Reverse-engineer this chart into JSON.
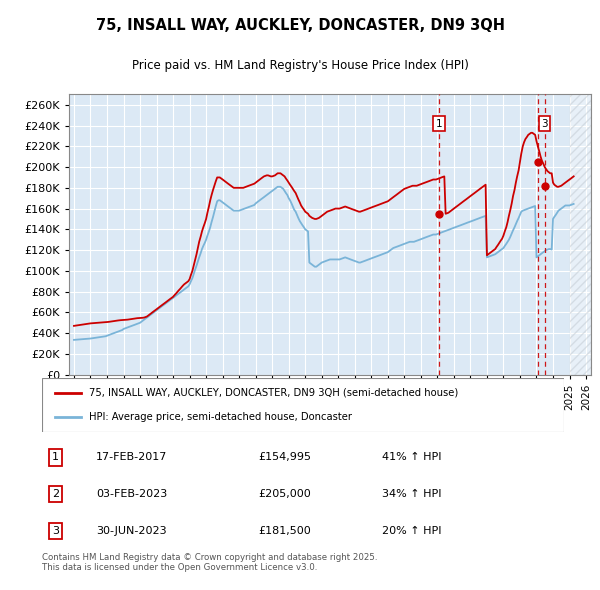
{
  "title": "75, INSALL WAY, AUCKLEY, DONCASTER, DN9 3QH",
  "subtitle": "Price paid vs. HM Land Registry's House Price Index (HPI)",
  "yticks": [
    0,
    20000,
    40000,
    60000,
    80000,
    100000,
    120000,
    140000,
    160000,
    180000,
    200000,
    220000,
    240000,
    260000
  ],
  "ylim": [
    0,
    270000
  ],
  "xlim_start": 1994.7,
  "xlim_end": 2026.3,
  "background_color": "#ffffff",
  "plot_bg_color": "#dce9f5",
  "grid_color": "#ffffff",
  "hatch_color": "#c0c8d0",
  "hpi_color": "#7ab4d8",
  "price_color": "#cc0000",
  "transactions": [
    {
      "label": "1",
      "date": 2017.12,
      "price": 154995,
      "on_chart": true
    },
    {
      "label": "2",
      "date": 2023.08,
      "price": 205000,
      "on_chart": false
    },
    {
      "label": "3",
      "date": 2023.49,
      "price": 181500,
      "on_chart": true
    }
  ],
  "transaction_dates_str": [
    "17-FEB-2017",
    "03-FEB-2023",
    "30-JUN-2023"
  ],
  "transaction_prices_str": [
    "£154,995",
    "£205,000",
    "£181,500"
  ],
  "transaction_pct": [
    "41% ↑ HPI",
    "34% ↑ HPI",
    "20% ↑ HPI"
  ],
  "legend_label_price": "75, INSALL WAY, AUCKLEY, DONCASTER, DN9 3QH (semi-detached house)",
  "legend_label_hpi": "HPI: Average price, semi-detached house, Doncaster",
  "footer": "Contains HM Land Registry data © Crown copyright and database right 2025.\nThis data is licensed under the Open Government Licence v3.0.",
  "hpi_x": [
    1995.0,
    1995.08,
    1995.17,
    1995.25,
    1995.33,
    1995.42,
    1995.5,
    1995.58,
    1995.67,
    1995.75,
    1995.83,
    1995.92,
    1996.0,
    1996.08,
    1996.17,
    1996.25,
    1996.33,
    1996.42,
    1996.5,
    1996.58,
    1996.67,
    1996.75,
    1996.83,
    1996.92,
    1997.0,
    1997.08,
    1997.17,
    1997.25,
    1997.33,
    1997.42,
    1997.5,
    1997.58,
    1997.67,
    1997.75,
    1997.83,
    1997.92,
    1998.0,
    1998.08,
    1998.17,
    1998.25,
    1998.33,
    1998.42,
    1998.5,
    1998.58,
    1998.67,
    1998.75,
    1998.83,
    1998.92,
    1999.0,
    1999.08,
    1999.17,
    1999.25,
    1999.33,
    1999.42,
    1999.5,
    1999.58,
    1999.67,
    1999.75,
    1999.83,
    1999.92,
    2000.0,
    2000.08,
    2000.17,
    2000.25,
    2000.33,
    2000.42,
    2000.5,
    2000.58,
    2000.67,
    2000.75,
    2000.83,
    2000.92,
    2001.0,
    2001.08,
    2001.17,
    2001.25,
    2001.33,
    2001.42,
    2001.5,
    2001.58,
    2001.67,
    2001.75,
    2001.83,
    2001.92,
    2002.0,
    2002.08,
    2002.17,
    2002.25,
    2002.33,
    2002.42,
    2002.5,
    2002.58,
    2002.67,
    2002.75,
    2002.83,
    2002.92,
    2003.0,
    2003.08,
    2003.17,
    2003.25,
    2003.33,
    2003.42,
    2003.5,
    2003.58,
    2003.67,
    2003.75,
    2003.83,
    2003.92,
    2004.0,
    2004.08,
    2004.17,
    2004.25,
    2004.33,
    2004.42,
    2004.5,
    2004.58,
    2004.67,
    2004.75,
    2004.83,
    2004.92,
    2005.0,
    2005.08,
    2005.17,
    2005.25,
    2005.33,
    2005.42,
    2005.5,
    2005.58,
    2005.67,
    2005.75,
    2005.83,
    2005.92,
    2006.0,
    2006.08,
    2006.17,
    2006.25,
    2006.33,
    2006.42,
    2006.5,
    2006.58,
    2006.67,
    2006.75,
    2006.83,
    2006.92,
    2007.0,
    2007.08,
    2007.17,
    2007.25,
    2007.33,
    2007.42,
    2007.5,
    2007.58,
    2007.67,
    2007.75,
    2007.83,
    2007.92,
    2008.0,
    2008.08,
    2008.17,
    2008.25,
    2008.33,
    2008.42,
    2008.5,
    2008.58,
    2008.67,
    2008.75,
    2008.83,
    2008.92,
    2009.0,
    2009.08,
    2009.17,
    2009.25,
    2009.33,
    2009.42,
    2009.5,
    2009.58,
    2009.67,
    2009.75,
    2009.83,
    2009.92,
    2010.0,
    2010.08,
    2010.17,
    2010.25,
    2010.33,
    2010.42,
    2010.5,
    2010.58,
    2010.67,
    2010.75,
    2010.83,
    2010.92,
    2011.0,
    2011.08,
    2011.17,
    2011.25,
    2011.33,
    2011.42,
    2011.5,
    2011.58,
    2011.67,
    2011.75,
    2011.83,
    2011.92,
    2012.0,
    2012.08,
    2012.17,
    2012.25,
    2012.33,
    2012.42,
    2012.5,
    2012.58,
    2012.67,
    2012.75,
    2012.83,
    2012.92,
    2013.0,
    2013.08,
    2013.17,
    2013.25,
    2013.33,
    2013.42,
    2013.5,
    2013.58,
    2013.67,
    2013.75,
    2013.83,
    2013.92,
    2014.0,
    2014.08,
    2014.17,
    2014.25,
    2014.33,
    2014.42,
    2014.5,
    2014.58,
    2014.67,
    2014.75,
    2014.83,
    2014.92,
    2015.0,
    2015.08,
    2015.17,
    2015.25,
    2015.33,
    2015.42,
    2015.5,
    2015.58,
    2015.67,
    2015.75,
    2015.83,
    2015.92,
    2016.0,
    2016.08,
    2016.17,
    2016.25,
    2016.33,
    2016.42,
    2016.5,
    2016.58,
    2016.67,
    2016.75,
    2016.83,
    2016.92,
    2017.0,
    2017.08,
    2017.17,
    2017.25,
    2017.33,
    2017.42,
    2017.5,
    2017.58,
    2017.67,
    2017.75,
    2017.83,
    2017.92,
    2018.0,
    2018.08,
    2018.17,
    2018.25,
    2018.33,
    2018.42,
    2018.5,
    2018.58,
    2018.67,
    2018.75,
    2018.83,
    2018.92,
    2019.0,
    2019.08,
    2019.17,
    2019.25,
    2019.33,
    2019.42,
    2019.5,
    2019.58,
    2019.67,
    2019.75,
    2019.83,
    2019.92,
    2020.0,
    2020.08,
    2020.17,
    2020.25,
    2020.33,
    2020.42,
    2020.5,
    2020.58,
    2020.67,
    2020.75,
    2020.83,
    2020.92,
    2021.0,
    2021.08,
    2021.17,
    2021.25,
    2021.33,
    2021.42,
    2021.5,
    2021.58,
    2021.67,
    2021.75,
    2021.83,
    2021.92,
    2022.0,
    2022.08,
    2022.17,
    2022.25,
    2022.33,
    2022.42,
    2022.5,
    2022.58,
    2022.67,
    2022.75,
    2022.83,
    2022.92,
    2023.0,
    2023.08,
    2023.17,
    2023.25,
    2023.33,
    2023.42,
    2023.5,
    2023.58,
    2023.67,
    2023.75,
    2023.83,
    2023.92,
    2024.0,
    2024.08,
    2024.17,
    2024.25,
    2024.33,
    2024.42,
    2024.5,
    2024.58,
    2024.67,
    2024.75,
    2024.83,
    2024.92,
    2025.0,
    2025.08,
    2025.17,
    2025.25
  ],
  "hpi_y": [
    33500,
    33600,
    33700,
    33800,
    33900,
    34000,
    34100,
    34200,
    34300,
    34400,
    34500,
    34600,
    34800,
    35000,
    35200,
    35400,
    35600,
    35800,
    36000,
    36200,
    36400,
    36600,
    36800,
    37000,
    37500,
    38000,
    38500,
    39000,
    39500,
    40000,
    40500,
    41000,
    41500,
    42000,
    42500,
    43000,
    44000,
    44500,
    45000,
    45500,
    46000,
    46500,
    47000,
    47500,
    48000,
    48500,
    49000,
    49500,
    50000,
    51000,
    52000,
    53000,
    54000,
    55000,
    56000,
    57000,
    58000,
    59000,
    60000,
    61000,
    62000,
    63000,
    64000,
    65000,
    66000,
    67000,
    68000,
    69000,
    70000,
    71000,
    72000,
    73000,
    74000,
    75000,
    76000,
    77000,
    78000,
    79000,
    80000,
    81000,
    82000,
    83000,
    84000,
    85000,
    87000,
    90000,
    93000,
    97000,
    101000,
    105000,
    109000,
    113000,
    117000,
    121000,
    124000,
    127000,
    130000,
    134000,
    138000,
    142000,
    147000,
    152000,
    157000,
    162000,
    167000,
    168000,
    168000,
    167000,
    166000,
    165000,
    164000,
    163000,
    162000,
    161000,
    160000,
    159000,
    158000,
    158000,
    158000,
    158000,
    158000,
    158500,
    159000,
    159500,
    160000,
    160500,
    161000,
    161500,
    162000,
    162500,
    163000,
    163500,
    165000,
    166000,
    167000,
    168000,
    169000,
    170000,
    171000,
    172000,
    173000,
    174000,
    175000,
    176000,
    177000,
    178000,
    179000,
    180000,
    181000,
    181000,
    181000,
    180000,
    179000,
    177000,
    175000,
    173000,
    170000,
    168000,
    165000,
    162000,
    159000,
    157000,
    154000,
    151000,
    148000,
    146000,
    144000,
    142000,
    140000,
    139000,
    138000,
    108000,
    107000,
    106000,
    105000,
    104000,
    104000,
    105000,
    106000,
    107000,
    108000,
    108500,
    109000,
    109500,
    110000,
    110500,
    111000,
    111000,
    111000,
    111000,
    111000,
    111000,
    111000,
    111000,
    111500,
    112000,
    112500,
    113000,
    112500,
    112000,
    111500,
    111000,
    110500,
    110000,
    109500,
    109000,
    108500,
    108000,
    108000,
    108500,
    109000,
    109500,
    110000,
    110500,
    111000,
    111500,
    112000,
    112500,
    113000,
    113500,
    114000,
    114500,
    115000,
    115500,
    116000,
    116500,
    117000,
    117500,
    118000,
    119000,
    120000,
    121000,
    122000,
    122500,
    123000,
    123500,
    124000,
    124500,
    125000,
    125500,
    126000,
    126500,
    127000,
    127500,
    128000,
    128000,
    128000,
    128000,
    128500,
    129000,
    129500,
    130000,
    130500,
    131000,
    131500,
    132000,
    132500,
    133000,
    133500,
    134000,
    134500,
    135000,
    135000,
    135000,
    135500,
    136000,
    136500,
    137000,
    137500,
    138000,
    138500,
    139000,
    139500,
    140000,
    140500,
    141000,
    141500,
    142000,
    142500,
    143000,
    143500,
    144000,
    144500,
    145000,
    145500,
    146000,
    146500,
    147000,
    147500,
    148000,
    148500,
    149000,
    149500,
    150000,
    150500,
    151000,
    151500,
    152000,
    152500,
    153000,
    113000,
    113500,
    114000,
    114500,
    115000,
    115500,
    116000,
    117000,
    118000,
    119000,
    120000,
    121000,
    122000,
    124000,
    126000,
    128000,
    130000,
    133000,
    136000,
    139000,
    142000,
    145000,
    148000,
    151000,
    154000,
    157000,
    158000,
    158500,
    159000,
    159500,
    160000,
    160500,
    161000,
    161500,
    162000,
    162500,
    113000,
    114000,
    115000,
    116000,
    117000,
    118000,
    119000,
    120000,
    120500,
    121000,
    121000,
    120500,
    150000,
    152000,
    154000,
    156000,
    158000,
    159000,
    160000,
    161000,
    162000,
    163000,
    163000,
    163000,
    163000,
    163500,
    164000,
    164500
  ],
  "price_x": [
    1995.0,
    1995.08,
    1995.17,
    1995.25,
    1995.33,
    1995.42,
    1995.5,
    1995.58,
    1995.67,
    1995.75,
    1995.83,
    1995.92,
    1996.0,
    1996.08,
    1996.17,
    1996.25,
    1996.33,
    1996.42,
    1996.5,
    1996.58,
    1996.67,
    1996.75,
    1996.83,
    1996.92,
    1997.0,
    1997.08,
    1997.17,
    1997.25,
    1997.33,
    1997.42,
    1997.5,
    1997.58,
    1997.67,
    1997.75,
    1997.83,
    1997.92,
    1998.0,
    1998.08,
    1998.17,
    1998.25,
    1998.33,
    1998.42,
    1998.5,
    1998.58,
    1998.67,
    1998.75,
    1998.83,
    1998.92,
    1999.0,
    1999.08,
    1999.17,
    1999.25,
    1999.33,
    1999.42,
    1999.5,
    1999.58,
    1999.67,
    1999.75,
    1999.83,
    1999.92,
    2000.0,
    2000.08,
    2000.17,
    2000.25,
    2000.33,
    2000.42,
    2000.5,
    2000.58,
    2000.67,
    2000.75,
    2000.83,
    2000.92,
    2001.0,
    2001.08,
    2001.17,
    2001.25,
    2001.33,
    2001.42,
    2001.5,
    2001.58,
    2001.67,
    2001.75,
    2001.83,
    2001.92,
    2002.0,
    2002.08,
    2002.17,
    2002.25,
    2002.33,
    2002.42,
    2002.5,
    2002.58,
    2002.67,
    2002.75,
    2002.83,
    2002.92,
    2003.0,
    2003.08,
    2003.17,
    2003.25,
    2003.33,
    2003.42,
    2003.5,
    2003.58,
    2003.67,
    2003.75,
    2003.83,
    2003.92,
    2004.0,
    2004.08,
    2004.17,
    2004.25,
    2004.33,
    2004.42,
    2004.5,
    2004.58,
    2004.67,
    2004.75,
    2004.83,
    2004.92,
    2005.0,
    2005.08,
    2005.17,
    2005.25,
    2005.33,
    2005.42,
    2005.5,
    2005.58,
    2005.67,
    2005.75,
    2005.83,
    2005.92,
    2006.0,
    2006.08,
    2006.17,
    2006.25,
    2006.33,
    2006.42,
    2006.5,
    2006.58,
    2006.67,
    2006.75,
    2006.83,
    2006.92,
    2007.0,
    2007.08,
    2007.17,
    2007.25,
    2007.33,
    2007.42,
    2007.5,
    2007.58,
    2007.67,
    2007.75,
    2007.83,
    2007.92,
    2008.0,
    2008.08,
    2008.17,
    2008.25,
    2008.33,
    2008.42,
    2008.5,
    2008.58,
    2008.67,
    2008.75,
    2008.83,
    2008.92,
    2009.0,
    2009.08,
    2009.17,
    2009.25,
    2009.33,
    2009.42,
    2009.5,
    2009.58,
    2009.67,
    2009.75,
    2009.83,
    2009.92,
    2010.0,
    2010.08,
    2010.17,
    2010.25,
    2010.33,
    2010.42,
    2010.5,
    2010.58,
    2010.67,
    2010.75,
    2010.83,
    2010.92,
    2011.0,
    2011.08,
    2011.17,
    2011.25,
    2011.33,
    2011.42,
    2011.5,
    2011.58,
    2011.67,
    2011.75,
    2011.83,
    2011.92,
    2012.0,
    2012.08,
    2012.17,
    2012.25,
    2012.33,
    2012.42,
    2012.5,
    2012.58,
    2012.67,
    2012.75,
    2012.83,
    2012.92,
    2013.0,
    2013.08,
    2013.17,
    2013.25,
    2013.33,
    2013.42,
    2013.5,
    2013.58,
    2013.67,
    2013.75,
    2013.83,
    2013.92,
    2014.0,
    2014.08,
    2014.17,
    2014.25,
    2014.33,
    2014.42,
    2014.5,
    2014.58,
    2014.67,
    2014.75,
    2014.83,
    2014.92,
    2015.0,
    2015.08,
    2015.17,
    2015.25,
    2015.33,
    2015.42,
    2015.5,
    2015.58,
    2015.67,
    2015.75,
    2015.83,
    2015.92,
    2016.0,
    2016.08,
    2016.17,
    2016.25,
    2016.33,
    2016.42,
    2016.5,
    2016.58,
    2016.67,
    2016.75,
    2016.83,
    2016.92,
    2017.0,
    2017.08,
    2017.17,
    2017.25,
    2017.33,
    2017.42,
    2017.5,
    2017.58,
    2017.67,
    2017.75,
    2017.83,
    2017.92,
    2018.0,
    2018.08,
    2018.17,
    2018.25,
    2018.33,
    2018.42,
    2018.5,
    2018.58,
    2018.67,
    2018.75,
    2018.83,
    2018.92,
    2019.0,
    2019.08,
    2019.17,
    2019.25,
    2019.33,
    2019.42,
    2019.5,
    2019.58,
    2019.67,
    2019.75,
    2019.83,
    2019.92,
    2020.0,
    2020.08,
    2020.17,
    2020.25,
    2020.33,
    2020.42,
    2020.5,
    2020.58,
    2020.67,
    2020.75,
    2020.83,
    2020.92,
    2021.0,
    2021.08,
    2021.17,
    2021.25,
    2021.33,
    2021.42,
    2021.5,
    2021.58,
    2021.67,
    2021.75,
    2021.83,
    2021.92,
    2022.0,
    2022.08,
    2022.17,
    2022.25,
    2022.33,
    2022.42,
    2022.5,
    2022.58,
    2022.67,
    2022.75,
    2022.83,
    2022.92,
    2023.0,
    2023.08,
    2023.17,
    2023.25,
    2023.33,
    2023.42,
    2023.5,
    2023.58,
    2023.67,
    2023.75,
    2023.83,
    2023.92,
    2024.0,
    2024.08,
    2024.17,
    2024.25,
    2024.33,
    2024.42,
    2024.5,
    2024.58,
    2024.67,
    2024.75,
    2024.83,
    2024.92,
    2025.0,
    2025.08,
    2025.17,
    2025.25
  ],
  "price_y": [
    47000,
    47200,
    47400,
    47600,
    47800,
    48000,
    48200,
    48400,
    48600,
    48800,
    49000,
    49200,
    49400,
    49500,
    49600,
    49700,
    49800,
    49900,
    50000,
    50100,
    50200,
    50300,
    50400,
    50500,
    50600,
    50800,
    51000,
    51200,
    51400,
    51600,
    51800,
    52000,
    52200,
    52400,
    52500,
    52600,
    52700,
    52800,
    52900,
    53000,
    53200,
    53400,
    53600,
    53800,
    54000,
    54200,
    54400,
    54500,
    54600,
    54700,
    54800,
    55000,
    55500,
    56000,
    57000,
    58000,
    59000,
    60000,
    61000,
    62000,
    63000,
    64000,
    65000,
    66000,
    67000,
    68000,
    69000,
    70000,
    71000,
    72000,
    73000,
    74000,
    75000,
    76500,
    78000,
    79500,
    81000,
    82500,
    84000,
    85500,
    87000,
    88000,
    89000,
    90000,
    92000,
    96000,
    100000,
    105000,
    110000,
    116000,
    122000,
    128000,
    133000,
    138000,
    142000,
    146000,
    150000,
    156000,
    162000,
    168000,
    173000,
    178000,
    182000,
    186000,
    190000,
    190000,
    190000,
    189000,
    188000,
    187000,
    186000,
    185000,
    184000,
    183000,
    182000,
    181000,
    180000,
    180000,
    180000,
    180000,
    180000,
    180000,
    180000,
    180000,
    180500,
    181000,
    181500,
    182000,
    182500,
    183000,
    183500,
    184000,
    185000,
    186000,
    187000,
    188000,
    189000,
    190000,
    191000,
    191500,
    192000,
    192000,
    191500,
    191000,
    191000,
    191500,
    192000,
    193000,
    194000,
    194000,
    194000,
    193000,
    192000,
    191000,
    189000,
    187000,
    185000,
    183000,
    181000,
    179000,
    177000,
    175000,
    172000,
    169000,
    166000,
    163000,
    161000,
    159000,
    157000,
    156000,
    155000,
    153000,
    152000,
    151000,
    150500,
    150000,
    150000,
    150500,
    151000,
    152000,
    153000,
    154000,
    155000,
    156000,
    157000,
    157500,
    158000,
    158500,
    159000,
    159500,
    160000,
    160000,
    160000,
    160000,
    160500,
    161000,
    161500,
    162000,
    161500,
    161000,
    160500,
    160000,
    159500,
    159000,
    158500,
    158000,
    157500,
    157000,
    157000,
    157500,
    158000,
    158500,
    159000,
    159500,
    160000,
    160500,
    161000,
    161500,
    162000,
    162500,
    163000,
    163500,
    164000,
    164500,
    165000,
    165500,
    166000,
    166500,
    167000,
    168000,
    169000,
    170000,
    171000,
    172000,
    173000,
    174000,
    175000,
    176000,
    177000,
    178000,
    179000,
    179500,
    180000,
    180500,
    181000,
    181500,
    182000,
    182000,
    182000,
    182000,
    182500,
    183000,
    183500,
    184000,
    184500,
    185000,
    185500,
    186000,
    186500,
    187000,
    187500,
    188000,
    188000,
    188000,
    188500,
    189000,
    189500,
    190000,
    190500,
    191000,
    155000,
    155500,
    156000,
    157000,
    158000,
    159000,
    160000,
    161000,
    162000,
    163000,
    164000,
    165000,
    166000,
    167000,
    168000,
    169000,
    170000,
    171000,
    172000,
    173000,
    174000,
    175000,
    176000,
    177000,
    178000,
    179000,
    180000,
    181000,
    182000,
    183000,
    115000,
    116000,
    117000,
    118000,
    119000,
    120000,
    121000,
    123000,
    125000,
    127000,
    129000,
    131000,
    134000,
    138000,
    142000,
    147000,
    153000,
    159000,
    165000,
    172000,
    178000,
    185000,
    191000,
    197000,
    205000,
    213000,
    220000,
    224000,
    227000,
    229000,
    231000,
    232000,
    233000,
    233000,
    232000,
    231000,
    225000,
    220000,
    215000,
    210000,
    206000,
    203000,
    200000,
    198000,
    196000,
    195000,
    194000,
    194000,
    185000,
    183000,
    182000,
    181000,
    181000,
    181500,
    182000,
    183000,
    184000,
    185000,
    186000,
    187000,
    188000,
    189000,
    190000,
    191000
  ]
}
